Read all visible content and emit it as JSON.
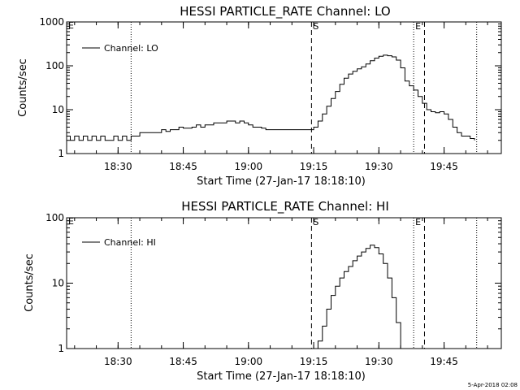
{
  "footer_date": "5-Apr-2018 02:08",
  "chart_data": [
    {
      "type": "line",
      "title": "HESSI PARTICLE_RATE Channel: LO",
      "xlabel": "Start Time (27-Jan-17 18:18:10)",
      "ylabel": "Counts/sec",
      "y_scale": "log",
      "ylim": [
        1,
        1000
      ],
      "yticks": [
        {
          "v": 1,
          "label": "1"
        },
        {
          "v": 10,
          "label": "10"
        },
        {
          "v": 100,
          "label": "100"
        },
        {
          "v": 1000,
          "label": "1000"
        }
      ],
      "xlim": [
        "18:18:10",
        "19:58:10"
      ],
      "xticks": [
        "18:30",
        "18:45",
        "19:00",
        "19:15",
        "19:30",
        "19:45"
      ],
      "legend": "Channel: LO",
      "legend_position": "top-left",
      "markers": [
        {
          "time": "18:33:00",
          "style": "dotted"
        },
        {
          "time": "19:14:30",
          "style": "dashed",
          "label": "S"
        },
        {
          "time": "19:38:00",
          "style": "dotted",
          "label": "E"
        },
        {
          "time": "19:40:30",
          "style": "dashed"
        },
        {
          "time": "19:52:30",
          "style": "dotted"
        }
      ],
      "corner_label": "E",
      "series": [
        {
          "x": [
            "18:18:10",
            "18:19",
            "18:20",
            "18:21",
            "18:22",
            "18:23",
            "18:24",
            "18:25",
            "18:26",
            "18:27",
            "18:28",
            "18:29",
            "18:30",
            "18:31",
            "18:32",
            "18:33",
            "18:34",
            "18:35",
            "18:36",
            "18:37",
            "18:38",
            "18:39",
            "18:40",
            "18:41",
            "18:42",
            "18:43",
            "18:44",
            "18:45",
            "18:46",
            "18:47",
            "18:48",
            "18:49",
            "18:50",
            "18:51",
            "18:52",
            "18:53",
            "18:54",
            "18:55",
            "18:56",
            "18:57",
            "18:58",
            "18:59",
            "19:00",
            "19:01",
            "19:02",
            "19:03",
            "19:04",
            "19:05",
            "19:06",
            "19:07",
            "19:08",
            "19:09",
            "19:10",
            "19:11",
            "19:12",
            "19:13",
            "19:14",
            "19:14:30",
            "19:15",
            "19:16",
            "19:17",
            "19:18",
            "19:19",
            "19:20",
            "19:21",
            "19:22",
            "19:23",
            "19:24",
            "19:25",
            "19:26",
            "19:27",
            "19:28",
            "19:29",
            "19:30",
            "19:31",
            "19:32",
            "19:33",
            "19:34",
            "19:35",
            "19:36",
            "19:37",
            "19:38",
            "19:39",
            "19:40",
            "19:41",
            "19:42",
            "19:43",
            "19:44",
            "19:45",
            "19:46",
            "19:47",
            "19:48",
            "19:49",
            "19:50",
            "19:51",
            "19:52"
          ],
          "y": [
            2.5,
            2,
            2.5,
            2,
            2.5,
            2,
            2.5,
            2,
            2.5,
            2,
            2,
            2.5,
            2,
            2.5,
            2,
            2.5,
            2.5,
            3,
            3,
            3,
            3,
            3,
            3.5,
            3.2,
            3.5,
            3.5,
            4,
            3.8,
            3.8,
            4,
            4.5,
            4,
            4.5,
            4.5,
            5,
            5,
            5,
            5.5,
            5.5,
            5,
            5.5,
            5,
            4.5,
            4,
            4,
            3.8,
            3.5,
            3.5,
            3.5,
            3.5,
            3.5,
            3.5,
            3.5,
            3.5,
            3.5,
            3.5,
            3.5,
            3.5,
            4,
            5.5,
            8,
            12,
            18,
            26,
            38,
            52,
            65,
            75,
            85,
            95,
            110,
            130,
            150,
            165,
            175,
            170,
            160,
            135,
            90,
            45,
            35,
            28,
            20,
            14,
            10,
            9,
            8.5,
            9,
            8,
            6,
            4,
            3,
            2.5,
            2.5,
            2.2,
            2
          ]
        }
      ]
    },
    {
      "type": "line",
      "title": "HESSI PARTICLE_RATE Channel: HI",
      "xlabel": "Start Time (27-Jan-17 18:18:10)",
      "ylabel": "Counts/sec",
      "y_scale": "log",
      "ylim": [
        1,
        100
      ],
      "yticks": [
        {
          "v": 1,
          "label": "1"
        },
        {
          "v": 10,
          "label": "10"
        },
        {
          "v": 100,
          "label": "100"
        }
      ],
      "xlim": [
        "18:18:10",
        "19:58:10"
      ],
      "xticks": [
        "18:30",
        "18:45",
        "19:00",
        "19:15",
        "19:30",
        "19:45"
      ],
      "legend": "Channel: HI",
      "legend_position": "top-left",
      "markers": [
        {
          "time": "18:33:00",
          "style": "dotted"
        },
        {
          "time": "19:14:30",
          "style": "dashed",
          "label": "S"
        },
        {
          "time": "19:38:00",
          "style": "dotted",
          "label": "E"
        },
        {
          "time": "19:40:30",
          "style": "dashed"
        },
        {
          "time": "19:52:30",
          "style": "dotted"
        }
      ],
      "corner_label": "E",
      "series": [
        {
          "x": [
            "19:15:30",
            "19:16",
            "19:17",
            "19:18",
            "19:19",
            "19:20",
            "19:21",
            "19:22",
            "19:23",
            "19:24",
            "19:25",
            "19:26",
            "19:27",
            "19:28",
            "19:29",
            "19:30",
            "19:31",
            "19:32",
            "19:33",
            "19:34",
            "19:35"
          ],
          "y": [
            1,
            1.3,
            2.2,
            4,
            6.5,
            9,
            12,
            15,
            18,
            22,
            26,
            30,
            34,
            38,
            35,
            28,
            20,
            12,
            6,
            2.5,
            1
          ]
        }
      ]
    }
  ]
}
